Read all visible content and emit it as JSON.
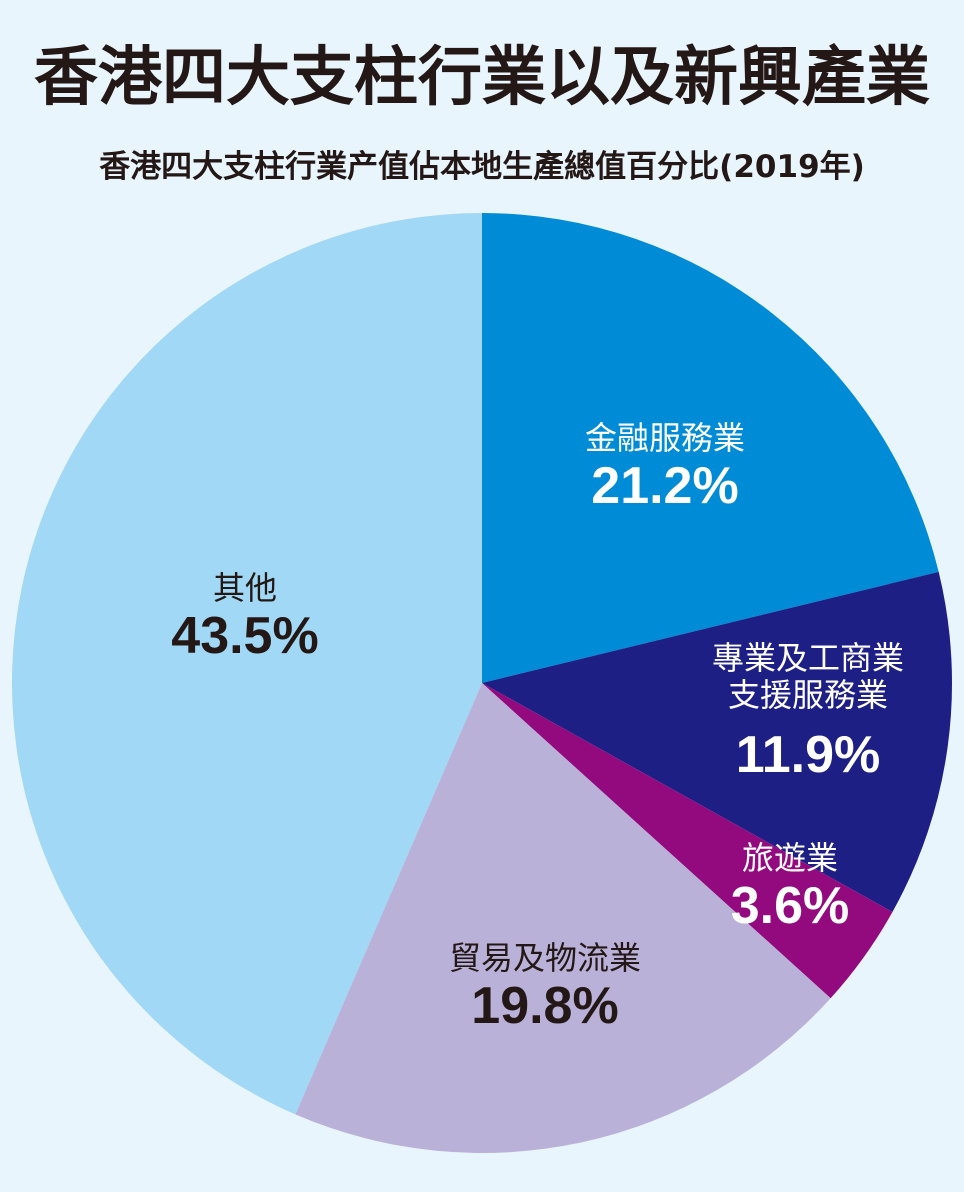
{
  "chart_data": {
    "type": "pie",
    "title": "香港四大支柱行業以及新興產業",
    "subtitle": "香港四大支柱行業产值佔本地生產總值百分比(2019年)",
    "slices": [
      {
        "label": "金融服務業",
        "value": 21.2,
        "display": "21.2%",
        "color": "#008bd6",
        "text_color": "#ffffff"
      },
      {
        "label": "專業及工商業\n支援服務業",
        "value": 11.9,
        "display": "11.9%",
        "color": "#1e1f85",
        "text_color": "#ffffff"
      },
      {
        "label": "旅遊業",
        "value": 3.6,
        "display": "3.6%",
        "color": "#930a7f",
        "text_color": "#ffffff"
      },
      {
        "label": "貿易及物流業",
        "value": 19.8,
        "display": "19.8%",
        "color": "#bab1d8",
        "text_color": "#231815"
      },
      {
        "label": "其他",
        "value": 43.5,
        "display": "43.5%",
        "color": "#a1d8f5",
        "text_color": "#231815"
      }
    ],
    "start": "12 o'clock",
    "direction": "clockwise"
  }
}
